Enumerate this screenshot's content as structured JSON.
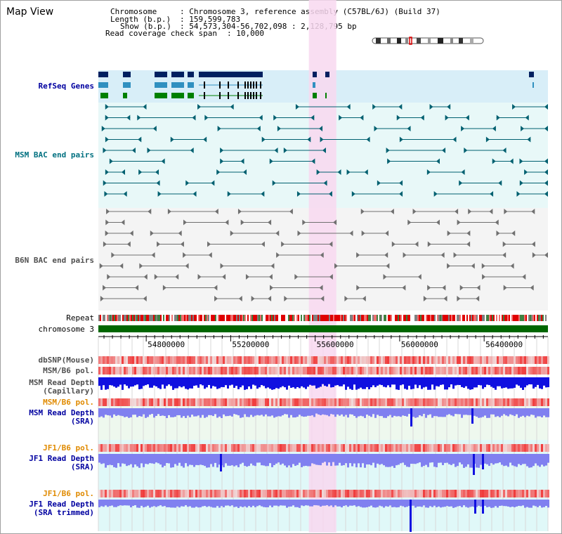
{
  "title": "Map View",
  "header": {
    "chromosome_key": "Chromosome",
    "chromosome_value": ": Chromosome 3, reference assembly (C57BL/6J) (Build 37)",
    "length_key": "Length (b.p.)",
    "length_value": ": 159,599,783",
    "show_key": "Show (b.p.)",
    "show_value": ": 54,573,304-56,702,098 : 2,128,795 bp",
    "coverage_key": "Read coverage check span",
    "coverage_value": ": 10,000"
  },
  "labels": {
    "refseq": "RefSeq Genes",
    "msm_bac": "MSM BAC end pairs",
    "b6n_bac": "B6N BAC end pairs",
    "repeat": "Repeat",
    "chromosome": "chromosome 3",
    "dbsnp": "dbSNP(Mouse)",
    "msm_b6_pol": "MSM/B6 pol.",
    "msm_depth_cap_1": "MSM Read Depth",
    "msm_depth_cap_2": "(Capillary)",
    "msm_b6_pol_2": "MSM/B6 pol.",
    "msm_depth_sra_1": "MSM Read Depth",
    "msm_depth_sra_2": "(SRA)",
    "jf1_b6_pol": "JF1/B6 pol.",
    "jf1_depth_sra_1": "JF1 Read Depth",
    "jf1_depth_sra_2": "(SRA)",
    "jf1_b6_pol_2": "JF1/B6 pol.",
    "jf1_depth_trim_1": "JF1 Read Depth",
    "jf1_depth_trim_2": "(SRA trimmed)"
  },
  "axis": {
    "start": 54573304,
    "end": 56702098,
    "ticks": [
      54800000,
      55200000,
      55600000,
      56000000,
      56400000
    ],
    "tick_labels": [
      "54800000",
      "55200000",
      "55600000",
      "56000000",
      "56400000"
    ]
  },
  "highlight": {
    "start": 55570000,
    "end": 55700000,
    "color": "#f8d8f0"
  },
  "colors": {
    "refseq_bg": "#d8eef8",
    "msm_bg": "#e8f8f8",
    "b6n_bg": "#f4f4f4",
    "depth_bg": "#eef8ee",
    "jf1_bg": "#e0f8f8",
    "depth_blue": "#1010e0",
    "depth_light": "#8080f0",
    "chrom_green": "#006600",
    "msm_feature": "#006070",
    "b6n_feature": "#707070"
  },
  "icons": {
    "ideogram": "chromosome-ideogram-icon"
  }
}
